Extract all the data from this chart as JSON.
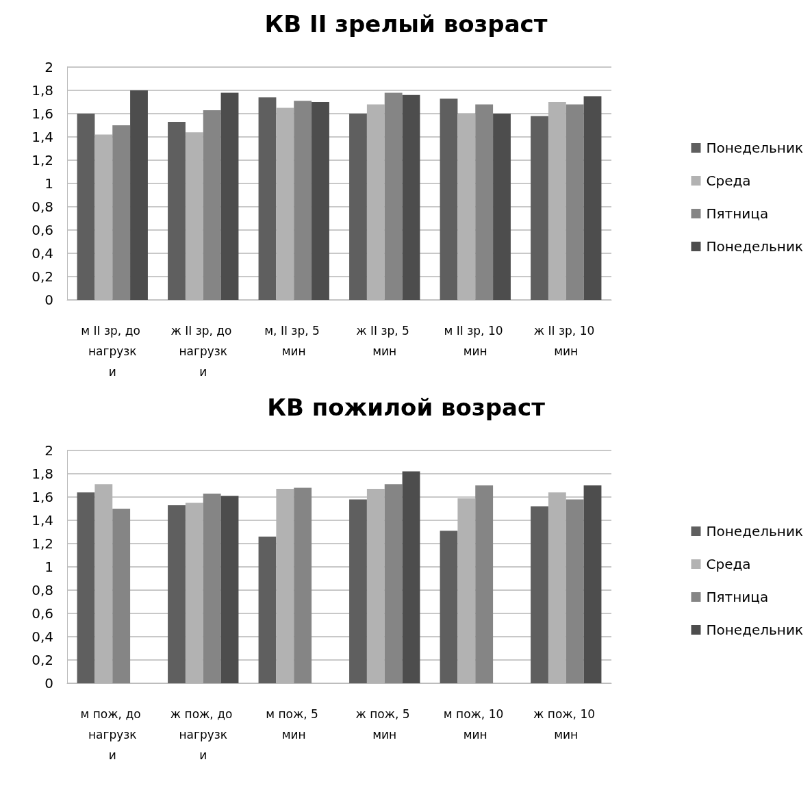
{
  "chart_data": [
    {
      "type": "bar",
      "title": "КВ II зрелый возраст",
      "categories": [
        "м II зр, до нагрузки",
        "ж II зр, до нагрузки",
        "м, II зр, 5 мин",
        "ж II зр, 5 мин",
        "м II зр, 10 мин",
        "ж II зр, 10 мин"
      ],
      "series": [
        {
          "name": "Понедельник",
          "color": "#5f5f5f",
          "values": [
            1.6,
            1.53,
            1.74,
            1.6,
            1.73,
            1.58
          ]
        },
        {
          "name": "Среда",
          "color": "#b2b2b2",
          "values": [
            1.42,
            1.44,
            1.65,
            1.68,
            1.6,
            1.7
          ]
        },
        {
          "name": "Пятница",
          "color": "#858585",
          "values": [
            1.5,
            1.63,
            1.71,
            1.78,
            1.68,
            1.68
          ]
        },
        {
          "name": "Понедельник",
          "color": "#4d4d4d",
          "values": [
            1.8,
            1.78,
            1.7,
            1.76,
            1.6,
            1.75
          ]
        }
      ],
      "ylim": [
        0,
        2
      ],
      "yticks": [
        {
          "value": 0,
          "label": "0"
        },
        {
          "value": 0.2,
          "label": "0,2"
        },
        {
          "value": 0.4,
          "label": "0,4"
        },
        {
          "value": 0.6,
          "label": "0,6"
        },
        {
          "value": 0.8,
          "label": "0,8"
        },
        {
          "value": 1,
          "label": "1"
        },
        {
          "value": 1.2,
          "label": "1,2"
        },
        {
          "value": 1.4,
          "label": "1,4"
        },
        {
          "value": 1.6,
          "label": "1,6"
        },
        {
          "value": 1.8,
          "label": "1,8"
        },
        {
          "value": 2,
          "label": "2"
        }
      ],
      "grid": "y",
      "legend": "right"
    },
    {
      "type": "bar",
      "title": "КВ пожилой возраст",
      "categories": [
        "м пож, до нагрузки",
        "ж пож, до нагрузки",
        "м пож, 5 мин",
        "ж пож, 5 мин",
        "м пож, 10 мин",
        "ж пож, 10 мин"
      ],
      "series": [
        {
          "name": "Понедельник",
          "color": "#5f5f5f",
          "values": [
            1.64,
            1.53,
            1.26,
            1.58,
            1.31,
            1.52
          ]
        },
        {
          "name": "Среда",
          "color": "#b2b2b2",
          "values": [
            1.71,
            1.55,
            1.67,
            1.67,
            1.59,
            1.64
          ]
        },
        {
          "name": "Пятница",
          "color": "#858585",
          "values": [
            1.5,
            1.63,
            1.68,
            1.71,
            1.7,
            1.58
          ]
        },
        {
          "name": "Понедельник",
          "color": "#4d4d4d",
          "values": [
            null,
            1.61,
            null,
            1.82,
            null,
            1.7
          ]
        }
      ],
      "ylim": [
        0,
        2
      ],
      "yticks": [
        {
          "value": 0,
          "label": "0"
        },
        {
          "value": 0.2,
          "label": "0,2"
        },
        {
          "value": 0.4,
          "label": "0,4"
        },
        {
          "value": 0.6,
          "label": "0,6"
        },
        {
          "value": 0.8,
          "label": "0,8"
        },
        {
          "value": 1,
          "label": "1"
        },
        {
          "value": 1.2,
          "label": "1,2"
        },
        {
          "value": 1.4,
          "label": "1,4"
        },
        {
          "value": 1.6,
          "label": "1,6"
        },
        {
          "value": 1.8,
          "label": "1,8"
        },
        {
          "value": 2,
          "label": "2"
        }
      ],
      "grid": "y",
      "legend": "right"
    }
  ]
}
